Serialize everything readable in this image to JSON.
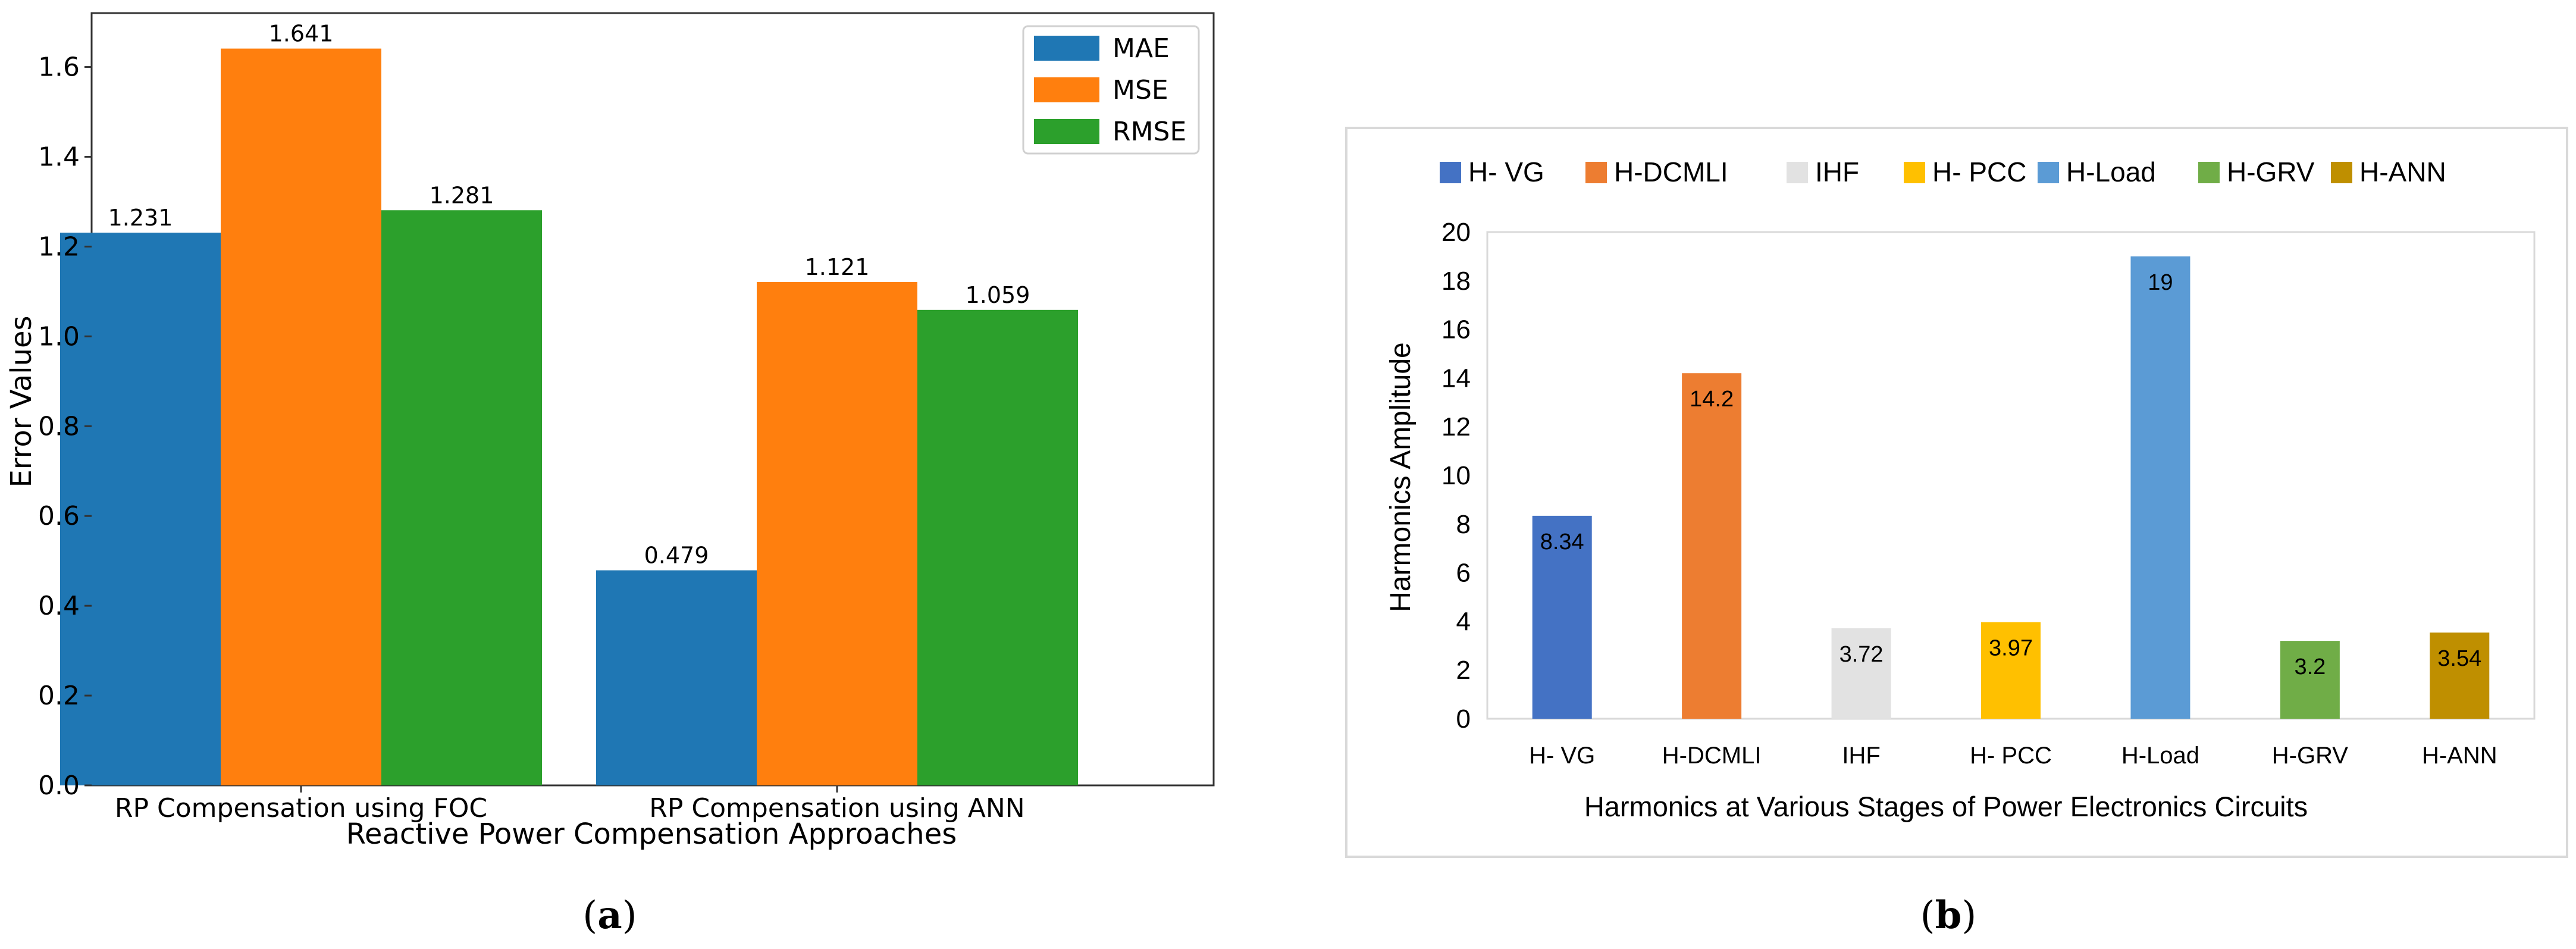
{
  "panels": {
    "a": {
      "caption_label": "a"
    },
    "b": {
      "caption_label": "b"
    }
  },
  "chart_data": [
    {
      "id": "a",
      "type": "bar",
      "title": "",
      "xlabel": "Reactive Power Compensation Approaches",
      "ylabel": "Error Values",
      "categories": [
        "RP Compensation using FOC",
        "RP Compensation using ANN"
      ],
      "series": [
        {
          "name": "MAE",
          "color": "#1f77b4",
          "values": [
            1.231,
            0.479
          ],
          "labels": [
            "1.231",
            "0.479"
          ]
        },
        {
          "name": "MSE",
          "color": "#ff7f0e",
          "values": [
            1.641,
            1.121
          ],
          "labels": [
            "1.641",
            "1.121"
          ]
        },
        {
          "name": "RMSE",
          "color": "#2ca02c",
          "values": [
            1.281,
            1.059
          ],
          "labels": [
            "1.281",
            "1.059"
          ]
        }
      ],
      "ylim": [
        0,
        1.72
      ],
      "yticks": [
        "0.0",
        "0.2",
        "0.4",
        "0.6",
        "0.8",
        "1.0",
        "1.2",
        "1.4",
        "1.6"
      ],
      "legend_position": "top-right",
      "grid": false
    },
    {
      "id": "b",
      "type": "bar",
      "title": "",
      "xlabel": "Harmonics at Various Stages of Power Electronics Circuits",
      "ylabel": "Harmonics Amplitude",
      "categories": [
        "H- VG",
        "H-DCMLI",
        "IHF",
        "H- PCC",
        "H-Load",
        "H-GRV",
        "H-ANN"
      ],
      "values": [
        8.34,
        14.2,
        3.72,
        3.97,
        19,
        3.2,
        3.54
      ],
      "labels": [
        "8.34",
        "14.2",
        "3.72",
        "3.97",
        "19",
        "3.2",
        "3.54"
      ],
      "colors": [
        "#4472c4",
        "#ed7d31",
        "#e2e2e2",
        "#ffc000",
        "#5b9bd5",
        "#70ad47",
        "#bf8f00"
      ],
      "ylim": [
        0,
        20
      ],
      "yticks": [
        "0",
        "2",
        "4",
        "6",
        "8",
        "10",
        "12",
        "14",
        "16",
        "18",
        "20"
      ],
      "legend_position": "top",
      "grid": false
    }
  ]
}
